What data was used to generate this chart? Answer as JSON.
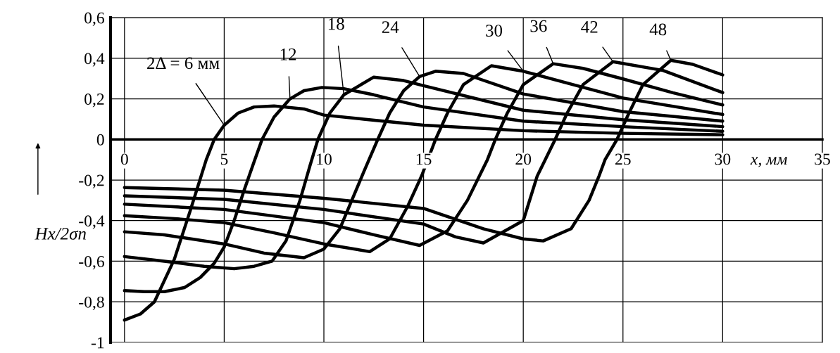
{
  "chart_data": {
    "type": "line",
    "xlabel": "x, мм",
    "ylabel": "Hx/2σn",
    "xlim": [
      -0.7,
      35
    ],
    "ylim": [
      -1,
      0.6
    ],
    "xticks": [
      0,
      5,
      10,
      15,
      20,
      25,
      30,
      35
    ],
    "yticks": [
      {
        "value": 0.6,
        "label": "0,6"
      },
      {
        "value": 0.4,
        "label": "0,4"
      },
      {
        "value": 0.2,
        "label": "0,2"
      },
      0,
      {
        "value": -0.2,
        "label": "-0,2"
      },
      {
        "value": -0.4,
        "label": "-0,4"
      },
      {
        "value": -0.6,
        "label": "-0,6"
      },
      {
        "value": -0.8,
        "label": "-0,8"
      },
      {
        "value": -1,
        "label": "-1"
      }
    ],
    "grid": true,
    "legend": false,
    "marker": "none",
    "line_style": "solid",
    "series": [
      {
        "name": "2Δ = 6 мм",
        "color": "#000000",
        "x": [
          0,
          0.8,
          1.5,
          2.5,
          3.3,
          4.1,
          4.5,
          5,
          5.7,
          6.5,
          7.5,
          9,
          10,
          12,
          15,
          20,
          25,
          30
        ],
        "values": [
          -0.89,
          -0.86,
          -0.8,
          -0.59,
          -0.35,
          -0.1,
          0,
          0.07,
          0.13,
          0.16,
          0.165,
          0.15,
          0.12,
          0.1,
          0.07,
          0.043,
          0.03,
          0.023
        ]
      },
      {
        "name": "12",
        "color": "#000000",
        "x": [
          0,
          1,
          2,
          3,
          3.8,
          4.5,
          5,
          5.5,
          6,
          6.5,
          6.9,
          7.5,
          8.3,
          9,
          9.9,
          11,
          12.5,
          15,
          20,
          25,
          30
        ],
        "values": [
          -0.745,
          -0.75,
          -0.75,
          -0.73,
          -0.68,
          -0.61,
          -0.53,
          -0.4,
          -0.25,
          -0.11,
          0,
          0.11,
          0.2,
          0.24,
          0.256,
          0.25,
          0.22,
          0.16,
          0.09,
          0.063,
          0.04
        ]
      },
      {
        "name": "18",
        "color": "#000000",
        "x": [
          0,
          2,
          4,
          5.5,
          6.5,
          7.4,
          8.1,
          8.8,
          9.3,
          9.7,
          10.3,
          11,
          12.5,
          14,
          15,
          20,
          25,
          30
        ],
        "values": [
          -0.577,
          -0.6,
          -0.625,
          -0.637,
          -0.625,
          -0.6,
          -0.5,
          -0.3,
          -0.13,
          0,
          0.13,
          0.22,
          0.307,
          0.29,
          0.265,
          0.144,
          0.097,
          0.063
        ]
      },
      {
        "name": "24",
        "color": "#000000",
        "x": [
          0,
          2,
          5,
          7,
          9,
          10,
          10.8,
          11.4,
          12,
          12.7,
          13.3,
          14,
          14.8,
          15.6,
          17,
          20,
          25,
          30
        ],
        "values": [
          -0.455,
          -0.47,
          -0.515,
          -0.56,
          -0.583,
          -0.54,
          -0.44,
          -0.3,
          -0.16,
          0,
          0.13,
          0.24,
          0.31,
          0.336,
          0.325,
          0.224,
          0.137,
          0.09
        ]
      },
      {
        "name": "30",
        "color": "#000000",
        "x": [
          0,
          2.5,
          5,
          7.5,
          10,
          12.3,
          13.3,
          14.2,
          14.9,
          15.6,
          16.2,
          17,
          18.4,
          20,
          22.5,
          25,
          30
        ],
        "values": [
          -0.376,
          -0.39,
          -0.41,
          -0.46,
          -0.515,
          -0.553,
          -0.49,
          -0.33,
          -0.18,
          0,
          0.13,
          0.27,
          0.363,
          0.336,
          0.27,
          0.204,
          0.123
        ]
      },
      {
        "name": "36",
        "color": "#000000",
        "x": [
          0,
          5,
          10,
          12.5,
          14.8,
          16.2,
          17.2,
          17.8,
          18.2,
          18.6,
          19.2,
          20,
          21.5,
          23,
          25,
          27.5,
          30
        ],
        "values": [
          -0.319,
          -0.345,
          -0.41,
          -0.47,
          -0.522,
          -0.45,
          -0.3,
          -0.18,
          -0.1,
          0,
          0.13,
          0.27,
          0.373,
          0.35,
          0.298,
          0.23,
          0.17
        ]
      },
      {
        "name": "42",
        "color": "#000000",
        "x": [
          0,
          5,
          10,
          15,
          16.6,
          18,
          20,
          20.7,
          21.1,
          21.6,
          22.2,
          23,
          24.5,
          27,
          30
        ],
        "values": [
          -0.278,
          -0.295,
          -0.345,
          -0.417,
          -0.48,
          -0.51,
          -0.4,
          -0.18,
          -0.1,
          0,
          0.13,
          0.27,
          0.383,
          0.34,
          0.231
        ]
      },
      {
        "name": "48",
        "color": "#000000",
        "x": [
          0,
          5,
          10,
          15,
          18,
          20,
          21,
          22.4,
          23.3,
          23.8,
          24.1,
          24.7,
          25.3,
          26,
          27.4,
          28.5,
          30
        ],
        "values": [
          -0.237,
          -0.25,
          -0.29,
          -0.34,
          -0.44,
          -0.49,
          -0.5,
          -0.44,
          -0.3,
          -0.18,
          -0.1,
          0,
          0.13,
          0.27,
          0.39,
          0.37,
          0.318
        ]
      }
    ]
  }
}
